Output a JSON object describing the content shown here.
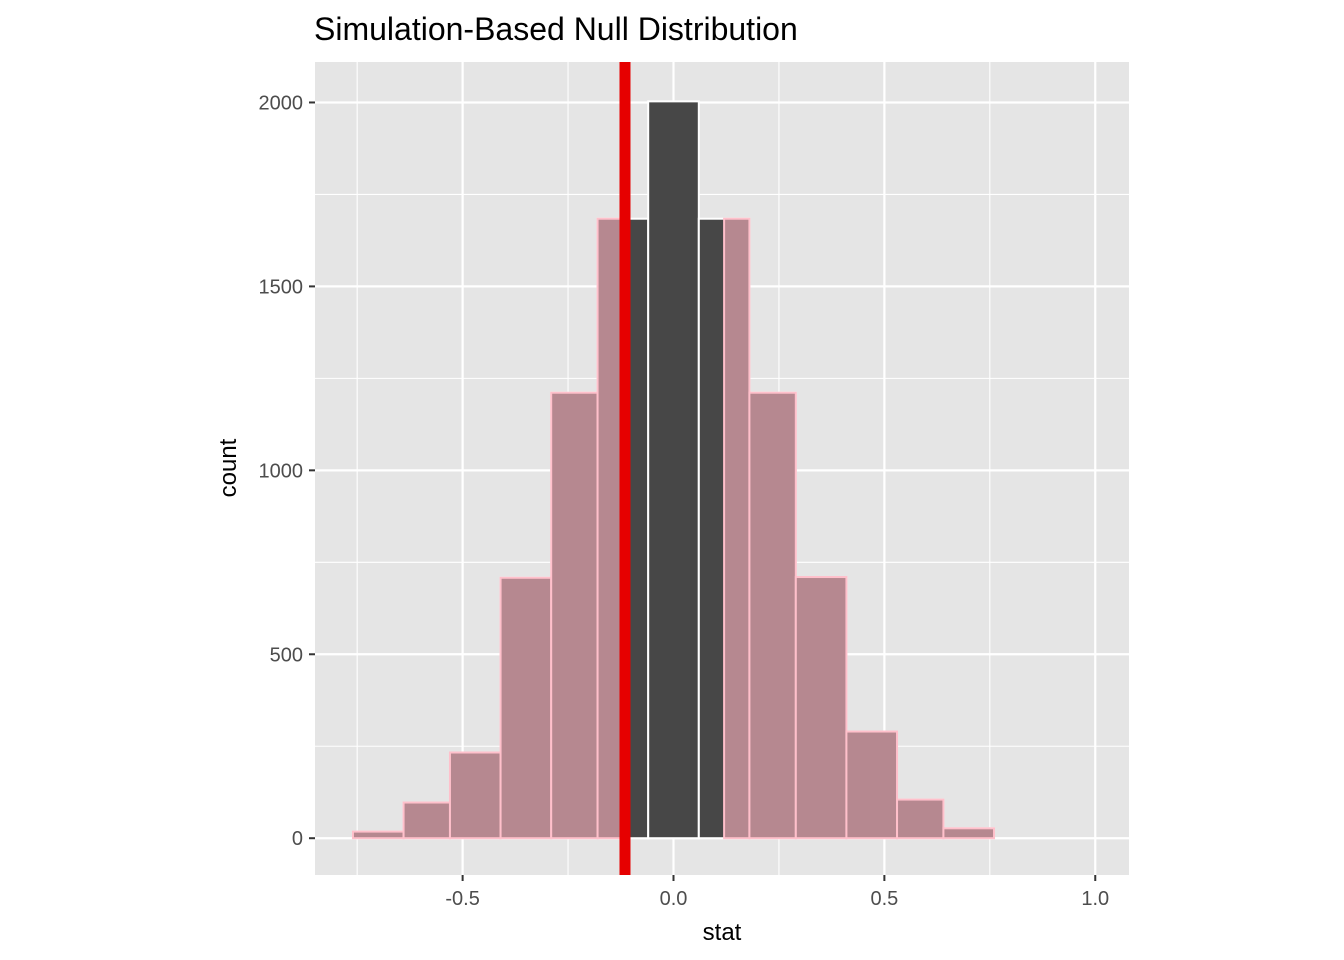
{
  "chart_data": {
    "type": "bar",
    "title": "Simulation-Based Null Distribution",
    "xlabel": "stat",
    "ylabel": "count",
    "xlim": [
      -0.85,
      1.08
    ],
    "ylim": [
      -100,
      2110
    ],
    "x_ticks": [
      -0.5,
      0.0,
      0.5,
      1.0
    ],
    "x_tick_labels": [
      "-0.5",
      "0.0",
      "0.5",
      "1.0"
    ],
    "y_ticks": [
      0,
      500,
      1000,
      1500,
      2000
    ],
    "y_tick_labels": [
      "0",
      "500",
      "1000",
      "1500",
      "2000"
    ],
    "grid": true,
    "bins": [
      {
        "x0": -0.76,
        "x1": -0.64,
        "count": 18,
        "shaded": true
      },
      {
        "x0": -0.64,
        "x1": -0.53,
        "count": 97,
        "shaded": true
      },
      {
        "x0": -0.53,
        "x1": -0.41,
        "count": 233,
        "shaded": true
      },
      {
        "x0": -0.41,
        "x1": -0.29,
        "count": 708,
        "shaded": true
      },
      {
        "x0": -0.29,
        "x1": -0.18,
        "count": 1211,
        "shaded": true
      },
      {
        "x0": -0.18,
        "x1": -0.06,
        "count": 1684,
        "shaded": false
      },
      {
        "x0": -0.06,
        "x1": 0.06,
        "count": 2003,
        "shaded": false
      },
      {
        "x0": 0.06,
        "x1": 0.18,
        "count": 1684,
        "shaded": false
      },
      {
        "x0": 0.18,
        "x1": 0.29,
        "count": 1211,
        "shaded": true
      },
      {
        "x0": 0.29,
        "x1": 0.41,
        "count": 710,
        "shaded": true
      },
      {
        "x0": 0.41,
        "x1": 0.53,
        "count": 290,
        "shaded": true
      },
      {
        "x0": 0.53,
        "x1": 0.64,
        "count": 105,
        "shaded": true
      },
      {
        "x0": 0.64,
        "x1": 0.76,
        "count": 27,
        "shaded": true
      },
      {
        "x0": 0.76,
        "x1": 0.88,
        "count": 0,
        "shaded": true
      },
      {
        "x0": 0.88,
        "x1": 1.0,
        "count": 0,
        "shaded": true
      }
    ],
    "shade_region": {
      "below": -0.12,
      "above": 0.12
    },
    "observed_stat": -0.115,
    "colors": {
      "panel": "#e5e5e5",
      "grid": "#ffffff",
      "bar_fill": "#474747",
      "bar_outline": "#ffffff",
      "shade_fill": "#b68890",
      "shade_outline": "#ffc0cb",
      "observed_line": "#e60000"
    }
  }
}
